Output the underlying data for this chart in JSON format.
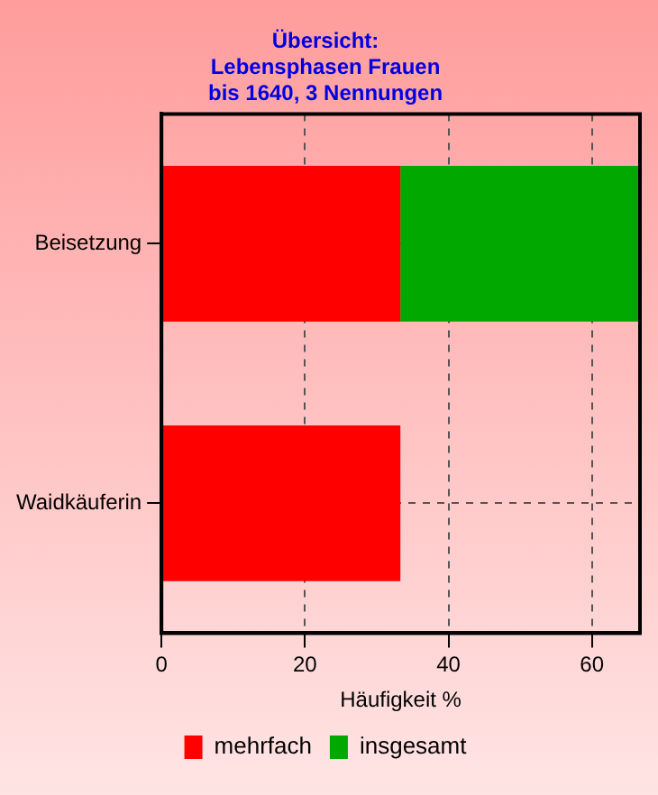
{
  "chart_data": {
    "type": "bar",
    "orientation": "horizontal",
    "stacked": true,
    "title": "Übersicht:\nLebensphasen Frauen\nbis 1640, 3 Nennungen",
    "xlabel": "Häufigkeit %",
    "categories": [
      "Beisetzung",
      "Waidkäuferin"
    ],
    "series": [
      {
        "name": "mehrfach",
        "color": "#ff0000",
        "values": [
          33.3,
          33.3
        ]
      },
      {
        "name": "insgesamt",
        "color": "#00a800",
        "values": [
          33.3,
          null
        ]
      }
    ],
    "xlim": [
      0,
      66.7
    ],
    "xticks": [
      0,
      20,
      40,
      60
    ],
    "grid": true,
    "legend": "bottom"
  }
}
